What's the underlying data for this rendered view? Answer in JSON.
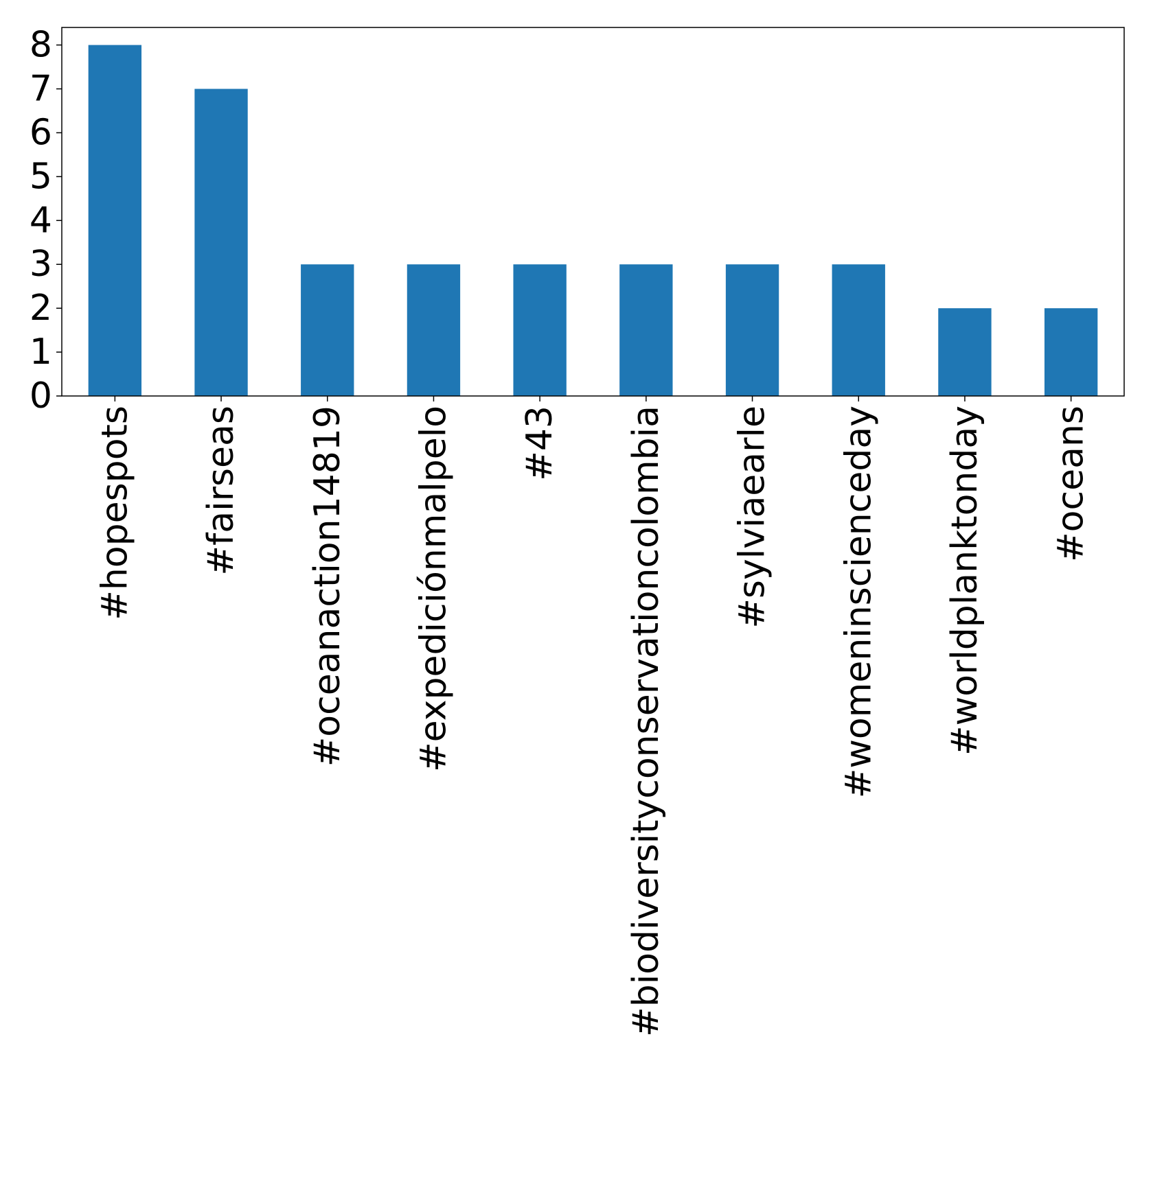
{
  "chart_data": {
    "type": "bar",
    "categories": [
      "#hopespots",
      "#fairseas",
      "#oceanaction14819",
      "#expediciónmalpelo",
      "#43",
      "#biodiversityconservationcolombia",
      "#sylviaearle",
      "#womeninscienceday",
      "#worldplanktonday",
      "#oceans"
    ],
    "values": [
      8,
      7,
      3,
      3,
      3,
      3,
      3,
      3,
      2,
      2
    ],
    "title": "",
    "xlabel": "",
    "ylabel": "",
    "ylim": [
      0,
      8.4
    ],
    "yticks": [
      0,
      1,
      2,
      3,
      4,
      5,
      6,
      7,
      8
    ],
    "grid": false,
    "legend": "none",
    "bar_color": "#1f77b4"
  }
}
